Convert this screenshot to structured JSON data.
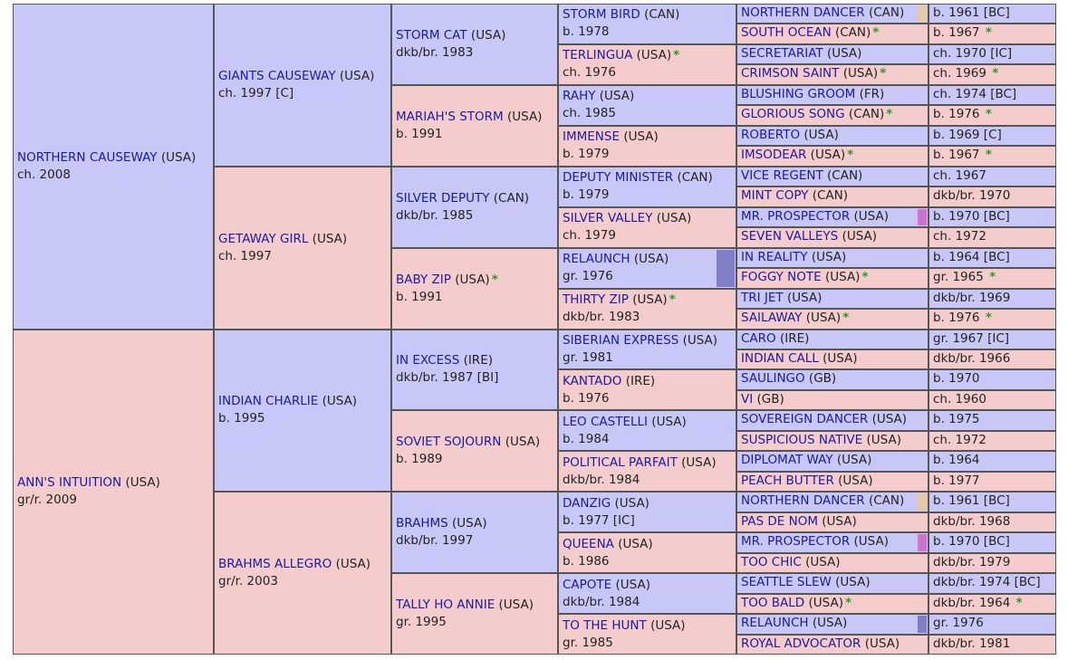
{
  "colors": {
    "male_bg": "#c8c8f8",
    "female_bg": "#f5cccc",
    "link": "#1a1aa6",
    "star": "#2a9a2a",
    "marker_tan": "#e8c8a0",
    "marker_pink": "#d070d0",
    "marker_violet": "#8080c8"
  },
  "gen1": [
    {
      "name": "NORTHERN CAUSEWAY",
      "country": "(USA)",
      "info": "ch. 2008",
      "sex": "m"
    },
    {
      "name": "ANN'S INTUITION",
      "country": "(USA)",
      "info": "gr/r. 2009",
      "sex": "f"
    }
  ],
  "gen2": [
    {
      "name": "GIANTS CAUSEWAY",
      "country": "(USA)",
      "info": "ch. 1997 [C]",
      "sex": "m"
    },
    {
      "name": "GETAWAY GIRL",
      "country": "(USA)",
      "info": "ch. 1997",
      "sex": "f"
    },
    {
      "name": "INDIAN CHARLIE",
      "country": "(USA)",
      "info": "b. 1995",
      "sex": "m"
    },
    {
      "name": "BRAHMS ALLEGRO",
      "country": "(USA)",
      "info": "gr/r. 2003",
      "sex": "f"
    }
  ],
  "gen3": [
    {
      "name": "STORM CAT",
      "country": "(USA)",
      "info": "dkb/br. 1983",
      "sex": "m"
    },
    {
      "name": "MARIAH'S STORM",
      "country": "(USA)",
      "info": "b. 1991",
      "sex": "f"
    },
    {
      "name": "SILVER DEPUTY",
      "country": "(CAN)",
      "info": "dkb/br. 1985",
      "sex": "m"
    },
    {
      "name": "BABY ZIP",
      "country": "(USA)",
      "info": "b. 1991",
      "sex": "f",
      "star": "*"
    },
    {
      "name": "IN EXCESS",
      "country": "(IRE)",
      "info": "dkb/br. 1987 [BI]",
      "sex": "m"
    },
    {
      "name": "SOVIET SOJOURN",
      "country": "(USA)",
      "info": "b. 1989",
      "sex": "f"
    },
    {
      "name": "BRAHMS",
      "country": "(USA)",
      "info": "dkb/br. 1997",
      "sex": "m"
    },
    {
      "name": "TALLY HO ANNIE",
      "country": "(USA)",
      "info": "gr. 1995",
      "sex": "f"
    }
  ],
  "gen4": [
    {
      "name": "STORM BIRD",
      "country": "(CAN)",
      "info": "b. 1978",
      "sex": "m"
    },
    {
      "name": "TERLINGUA",
      "country": "(USA)",
      "info": "ch. 1976",
      "sex": "f",
      "star": "*"
    },
    {
      "name": "RAHY",
      "country": "(USA)",
      "info": "ch. 1985",
      "sex": "m"
    },
    {
      "name": "IMMENSE",
      "country": "(USA)",
      "info": "b. 1979",
      "sex": "f"
    },
    {
      "name": "DEPUTY MINISTER",
      "country": "(CAN)",
      "info": "b. 1979",
      "sex": "m"
    },
    {
      "name": "SILVER VALLEY",
      "country": "(USA)",
      "info": "ch. 1979",
      "sex": "f"
    },
    {
      "name": "RELAUNCH",
      "country": "(USA)",
      "info": "gr. 1976",
      "sex": "m",
      "marker": "violet"
    },
    {
      "name": "THIRTY ZIP",
      "country": "(USA)",
      "info": "dkb/br. 1983",
      "sex": "f",
      "star": "*"
    },
    {
      "name": "SIBERIAN EXPRESS",
      "country": "(USA)",
      "info": "gr. 1981",
      "sex": "m"
    },
    {
      "name": "KANTADO",
      "country": "(IRE)",
      "info": "b. 1976",
      "sex": "f"
    },
    {
      "name": "LEO CASTELLI",
      "country": "(USA)",
      "info": "b. 1984",
      "sex": "m"
    },
    {
      "name": "POLITICAL PARFAIT",
      "country": "(USA)",
      "info": "dkb/br. 1984",
      "sex": "f"
    },
    {
      "name": "DANZIG",
      "country": "(USA)",
      "info": "b. 1977 [IC]",
      "sex": "m"
    },
    {
      "name": "QUEENA",
      "country": "(USA)",
      "info": "b. 1986",
      "sex": "f"
    },
    {
      "name": "CAPOTE",
      "country": "(USA)",
      "info": "dkb/br. 1984",
      "sex": "m"
    },
    {
      "name": "TO THE HUNT",
      "country": "(USA)",
      "info": "gr. 1985",
      "sex": "f"
    }
  ],
  "gen5": [
    {
      "name": "NORTHERN DANCER",
      "country": "(CAN)",
      "info": "b. 1961 [BC]",
      "sex": "m",
      "marker": "tan"
    },
    {
      "name": "SOUTH OCEAN",
      "country": "(CAN)",
      "info": "b. 1967",
      "sex": "f",
      "star": "*"
    },
    {
      "name": "SECRETARIAT",
      "country": "(USA)",
      "info": "ch. 1970 [IC]",
      "sex": "m"
    },
    {
      "name": "CRIMSON SAINT",
      "country": "(USA)",
      "info": "ch. 1969",
      "sex": "f",
      "star": "*"
    },
    {
      "name": "BLUSHING GROOM",
      "country": "(FR)",
      "info": "ch. 1974 [BC]",
      "sex": "m"
    },
    {
      "name": "GLORIOUS SONG",
      "country": "(CAN)",
      "info": "b. 1976",
      "sex": "f",
      "star": "*"
    },
    {
      "name": "ROBERTO",
      "country": "(USA)",
      "info": "b. 1969 [C]",
      "sex": "m"
    },
    {
      "name": "IMSODEAR",
      "country": "(USA)",
      "info": "b. 1967",
      "sex": "f",
      "star": "*"
    },
    {
      "name": "VICE REGENT",
      "country": "(CAN)",
      "info": "ch. 1967",
      "sex": "m"
    },
    {
      "name": "MINT COPY",
      "country": "(CAN)",
      "info": "dkb/br. 1970",
      "sex": "f"
    },
    {
      "name": "MR. PROSPECTOR",
      "country": "(USA)",
      "info": "b. 1970 [BC]",
      "sex": "m",
      "marker": "pink"
    },
    {
      "name": "SEVEN VALLEYS",
      "country": "(USA)",
      "info": "ch. 1972",
      "sex": "f"
    },
    {
      "name": "IN REALITY",
      "country": "(USA)",
      "info": "b. 1964 [BC]",
      "sex": "m"
    },
    {
      "name": "FOGGY NOTE",
      "country": "(USA)",
      "info": "gr. 1965",
      "sex": "f",
      "star": "*"
    },
    {
      "name": "TRI JET",
      "country": "(USA)",
      "info": "dkb/br. 1969",
      "sex": "m"
    },
    {
      "name": "SAILAWAY",
      "country": "(USA)",
      "info": "b. 1976",
      "sex": "f",
      "star": "*"
    },
    {
      "name": "CARO",
      "country": "(IRE)",
      "info": "gr. 1967 [IC]",
      "sex": "m"
    },
    {
      "name": "INDIAN CALL",
      "country": "(USA)",
      "info": "dkb/br. 1966",
      "sex": "f"
    },
    {
      "name": "SAULINGO",
      "country": "(GB)",
      "info": "b. 1970",
      "sex": "m"
    },
    {
      "name": "VI",
      "country": "(GB)",
      "info": "ch. 1960",
      "sex": "f"
    },
    {
      "name": "SOVEREIGN DANCER",
      "country": "(USA)",
      "info": "b. 1975",
      "sex": "m"
    },
    {
      "name": "SUSPICIOUS NATIVE",
      "country": "(USA)",
      "info": "ch. 1972",
      "sex": "f"
    },
    {
      "name": "DIPLOMAT WAY",
      "country": "(USA)",
      "info": "b. 1964",
      "sex": "m"
    },
    {
      "name": "PEACH BUTTER",
      "country": "(USA)",
      "info": "b. 1977",
      "sex": "f"
    },
    {
      "name": "NORTHERN DANCER",
      "country": "(CAN)",
      "info": "b. 1961 [BC]",
      "sex": "m",
      "marker": "tan"
    },
    {
      "name": "PAS DE NOM",
      "country": "(USA)",
      "info": "dkb/br. 1968",
      "sex": "f"
    },
    {
      "name": "MR. PROSPECTOR",
      "country": "(USA)",
      "info": "b. 1970 [BC]",
      "sex": "m",
      "marker": "pink"
    },
    {
      "name": "TOO CHIC",
      "country": "(USA)",
      "info": "dkb/br. 1979",
      "sex": "f"
    },
    {
      "name": "SEATTLE SLEW",
      "country": "(USA)",
      "info": "dkb/br. 1974 [BC]",
      "sex": "m"
    },
    {
      "name": "TOO BALD",
      "country": "(USA)",
      "info": "dkb/br. 1964",
      "sex": "f",
      "star": "*"
    },
    {
      "name": "RELAUNCH",
      "country": "(USA)",
      "info": "gr. 1976",
      "sex": "m",
      "marker": "violet"
    },
    {
      "name": "ROYAL ADVOCATOR",
      "country": "(USA)",
      "info": "dkb/br. 1981",
      "sex": "f"
    }
  ]
}
